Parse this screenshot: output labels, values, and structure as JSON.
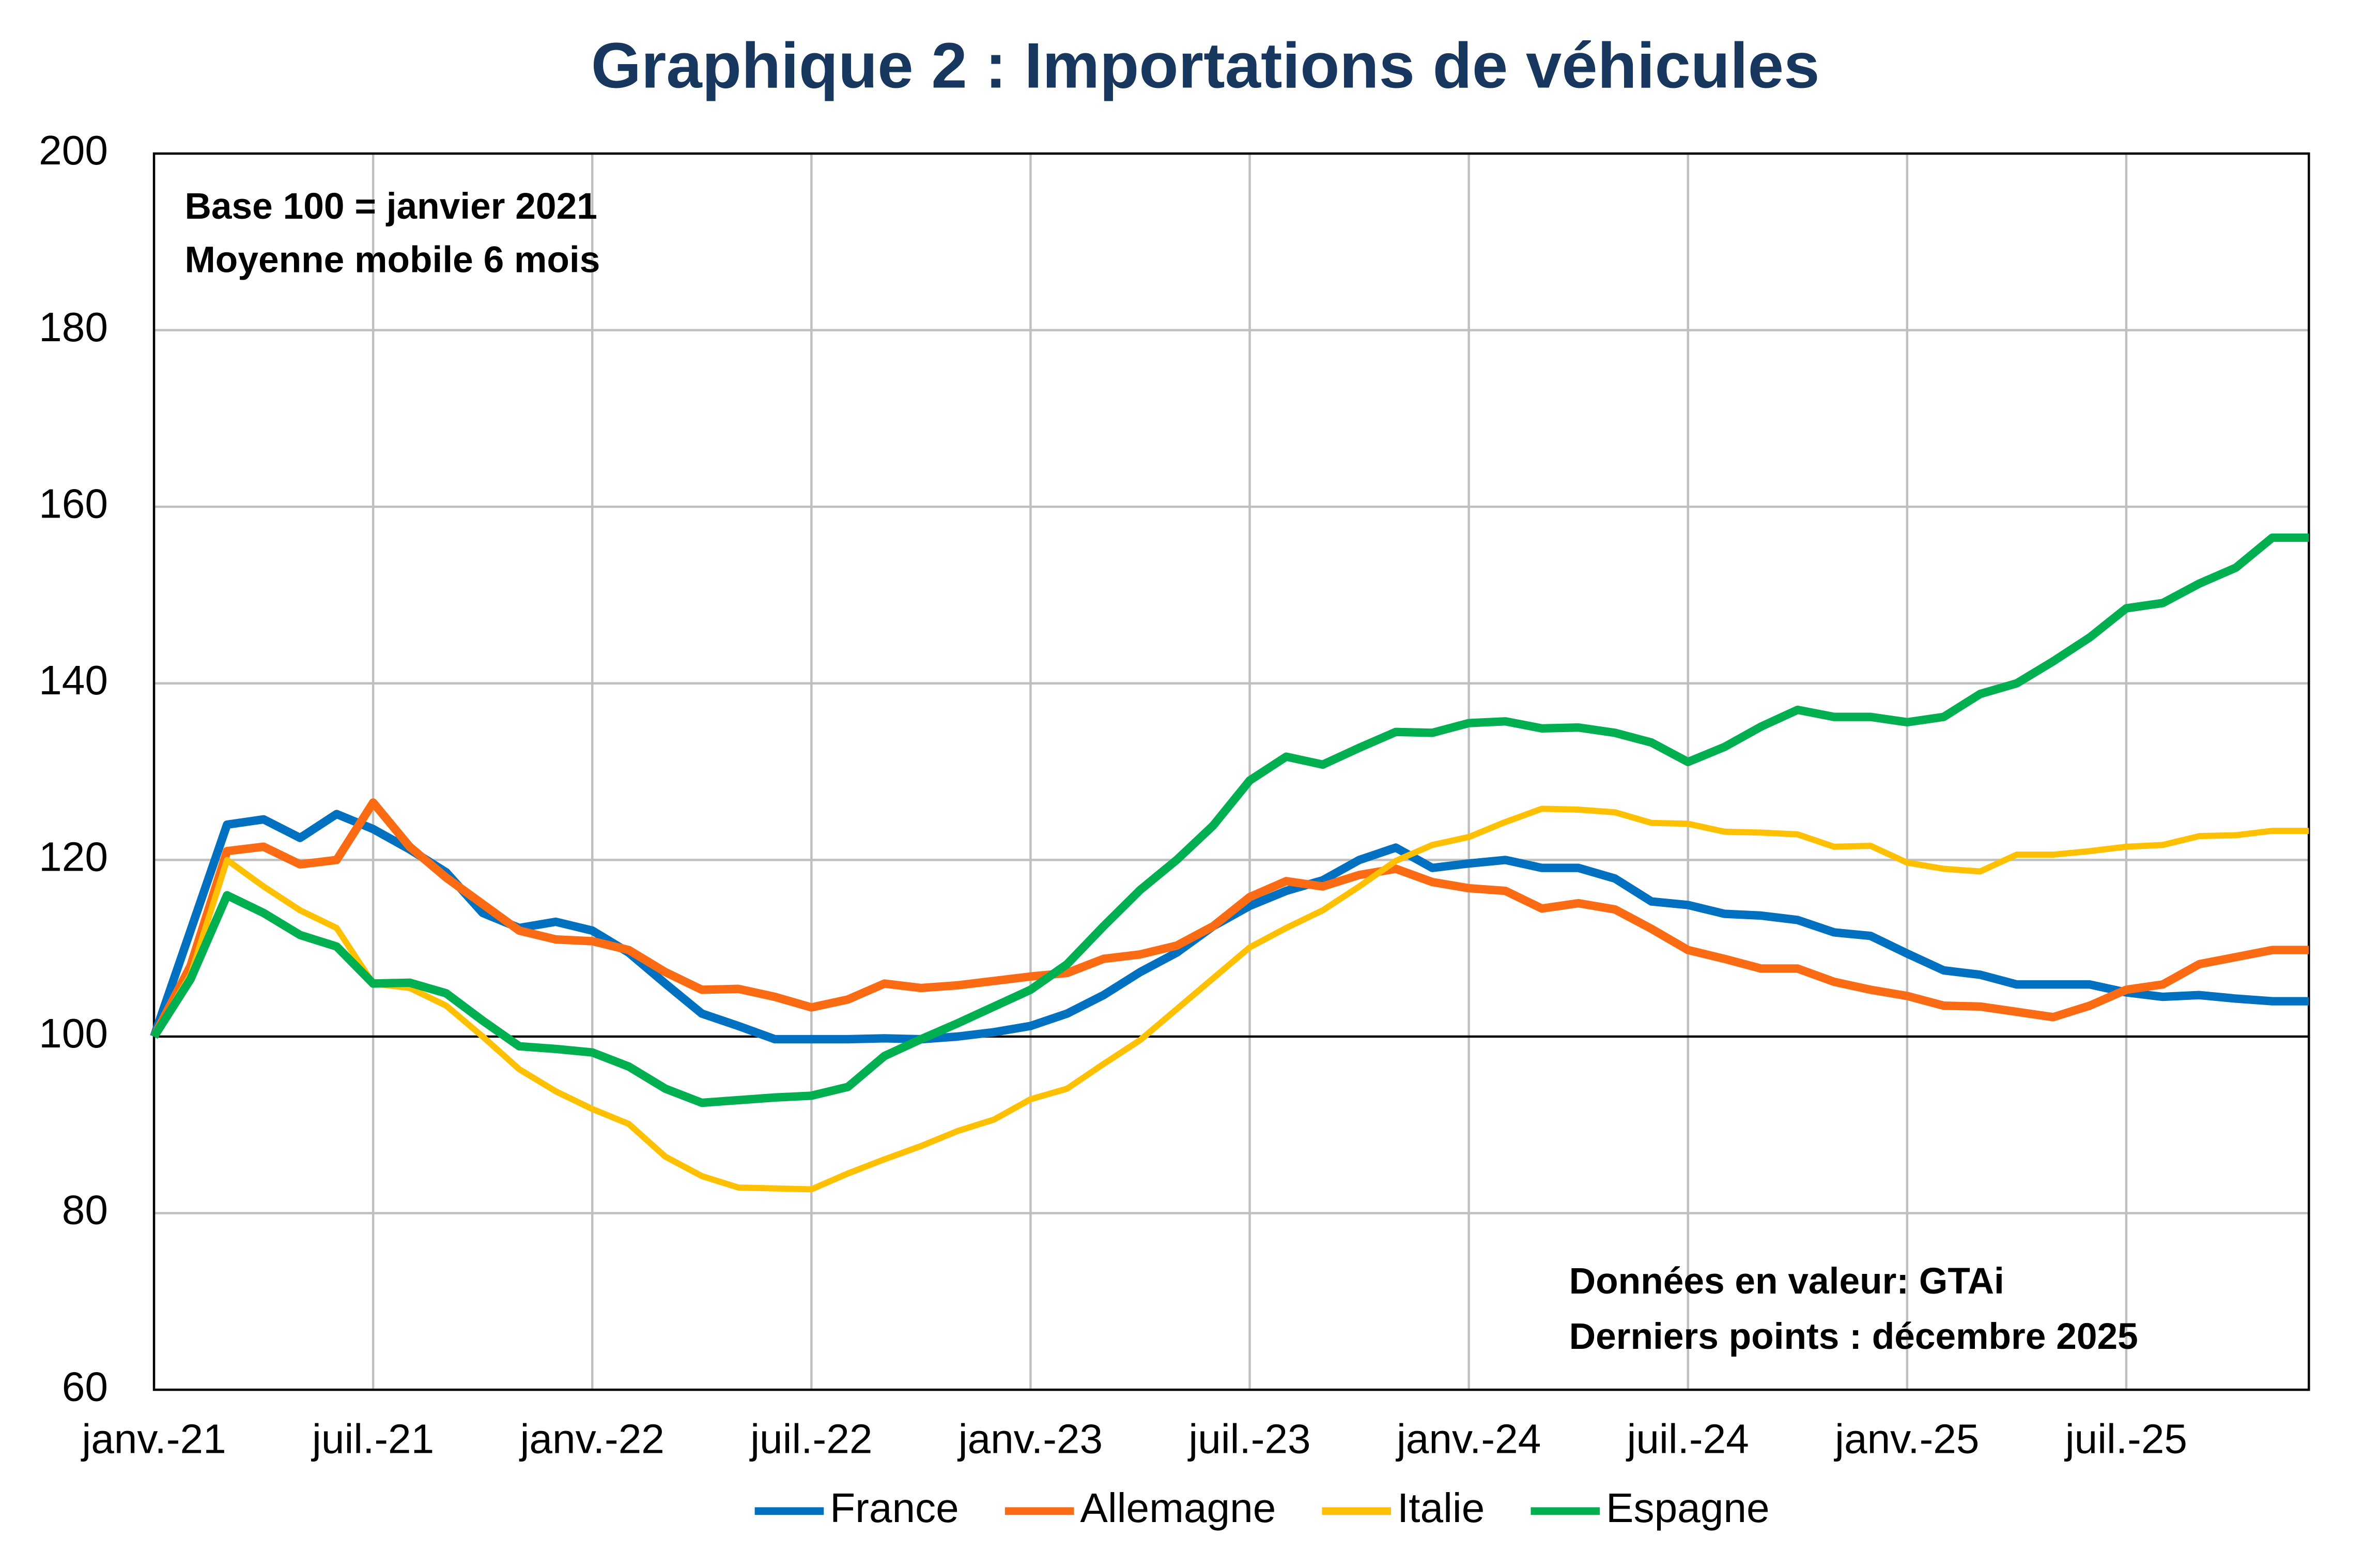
{
  "chart_data": {
    "type": "line",
    "title": "Graphique 2 : Importations de véhicules",
    "annotations": [
      "Base 100 = janvier 2021",
      "Moyenne mobile 6 mois",
      "Données en valeur: GTAi",
      "Derniers points : décembre 2025"
    ],
    "categories": [
      "janv.-21",
      null,
      null,
      null,
      null,
      null,
      "juil.-21",
      null,
      null,
      null,
      null,
      null,
      "janv.-22",
      null,
      null,
      null,
      null,
      null,
      "juil.-22",
      null,
      null,
      null,
      null,
      null,
      "janv.-23",
      null,
      null,
      null,
      null,
      null,
      "juil.-23",
      null,
      null,
      null,
      null,
      null,
      "janv.-24",
      null,
      null,
      null,
      null,
      null,
      "juil.-24",
      null,
      null,
      null,
      null,
      null,
      "janv.-25",
      null,
      null,
      null,
      null,
      null,
      "juil.-25",
      null,
      null,
      null,
      null,
      null
    ],
    "ylim": [
      60,
      200
    ],
    "yticks": [
      60,
      80,
      100,
      120,
      140,
      160,
      180,
      200
    ],
    "baseline": 100,
    "grid": true,
    "legend": "bottom",
    "series": [
      {
        "name": "France",
        "color": "#0070c0",
        "values": [
          100,
          112,
          124,
          124.6,
          122.5,
          125.2,
          123.5,
          121.2,
          118.6,
          114,
          112.3,
          113,
          112,
          109.5,
          106,
          102.6,
          101.2,
          99.7,
          99.7,
          99.7,
          99.8,
          99.7,
          100,
          100.5,
          101.2,
          102.6,
          104.7,
          107.3,
          109.5,
          112.5,
          114.8,
          116.5,
          117.7,
          120,
          121.4,
          119.1,
          119.6,
          120,
          119.1,
          119.1,
          117.9,
          115.3,
          114.9,
          113.9,
          113.7,
          113.2,
          111.8,
          111.4,
          109.4,
          107.5,
          107,
          105.9,
          105.9,
          105.9,
          105,
          104.5,
          104.7,
          104.3,
          104,
          104
        ]
      },
      {
        "name": "Allemagne",
        "color": "#fb6b14",
        "values": [
          100,
          108,
          121,
          121.5,
          119.5,
          120,
          126.5,
          121.5,
          118,
          115,
          112,
          111,
          110.8,
          109.8,
          107.3,
          105.3,
          105.4,
          104.5,
          103.3,
          104.2,
          106,
          105.5,
          105.8,
          106.3,
          106.8,
          107.2,
          108.8,
          109.3,
          110.3,
          112.5,
          115.8,
          117.6,
          117,
          118.3,
          119,
          117.5,
          116.8,
          116.5,
          114.5,
          115.1,
          114.4,
          112.2,
          109.8,
          108.8,
          107.7,
          107.7,
          106.2,
          105.3,
          104.6,
          103.5,
          103.4,
          102.8,
          102.2,
          103.5,
          105.3,
          105.9,
          108.2,
          109,
          109.8,
          109.8
        ]
      },
      {
        "name": "Italie",
        "color": "#ffc000",
        "values": [
          100,
          107,
          120,
          117,
          114.3,
          112.3,
          106,
          105.5,
          103.5,
          100,
          96.3,
          93.8,
          91.8,
          90.1,
          86.4,
          84.2,
          82.9,
          82.8,
          82.7,
          84.5,
          86.1,
          87.6,
          89.3,
          90.6,
          92.9,
          94.1,
          96.9,
          99.6,
          103.1,
          106.6,
          110.1,
          112.3,
          114.3,
          117,
          119.9,
          121.7,
          122.6,
          124.3,
          125.8,
          125.7,
          125.4,
          124.2,
          124.1,
          123.2,
          123.1,
          122.9,
          121.5,
          121.6,
          119.7,
          119,
          118.7,
          120.6,
          120.6,
          121,
          121.5,
          121.7,
          122.7,
          122.8,
          123.3,
          123.3
        ]
      },
      {
        "name": "Espagne",
        "color": "#00b050",
        "values": [
          100,
          106.5,
          116,
          114,
          111.5,
          110.2,
          106,
          106.1,
          104.9,
          101.8,
          98.9,
          98.6,
          98.2,
          96.6,
          94.1,
          92.5,
          92.8,
          93.1,
          93.3,
          94.3,
          97.8,
          99.7,
          101.5,
          103.4,
          105.3,
          108.2,
          112.5,
          116.6,
          120,
          123.9,
          129,
          131.7,
          130.8,
          132.7,
          134.5,
          134.4,
          135.5,
          135.7,
          134.9,
          135,
          134.4,
          133.3,
          131.1,
          132.8,
          135.1,
          137,
          136.2,
          136.2,
          135.6,
          136.2,
          138.8,
          140,
          142.5,
          145.2,
          148.5,
          149.1,
          151.3,
          153.1,
          156.5,
          156.5
        ]
      }
    ]
  }
}
